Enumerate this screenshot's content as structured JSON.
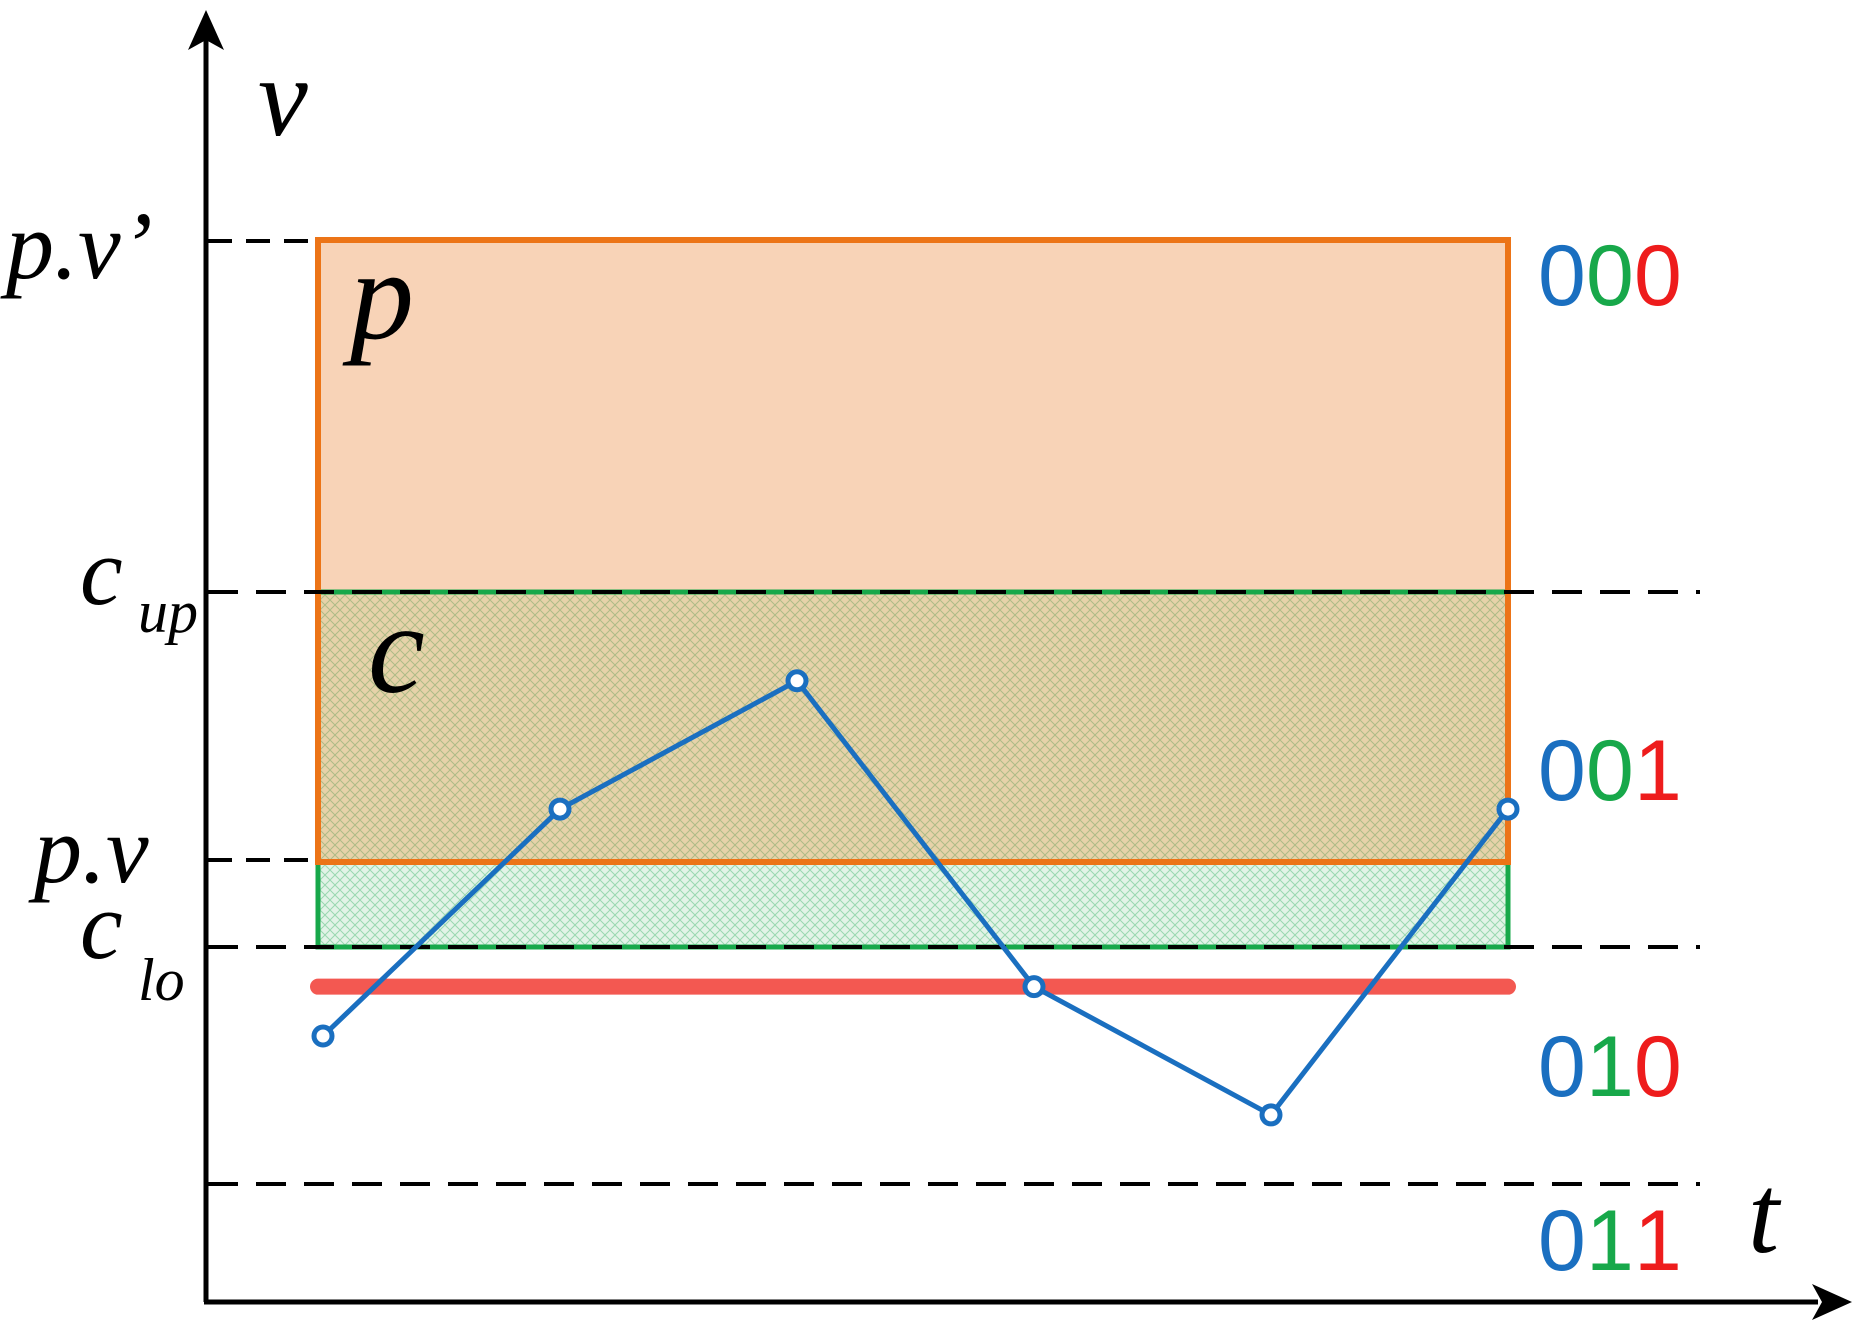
{
  "axes": {
    "y_label": "v",
    "x_label": "t"
  },
  "level_labels": {
    "p_v_prime": "p.v’",
    "c_up_main": "c",
    "c_up_sub": "up",
    "p_v": "p.v",
    "c_lo_main": "c",
    "c_lo_sub": "lo"
  },
  "region_labels": {
    "p": "p",
    "c": "c"
  },
  "codes": [
    {
      "digits": [
        "0",
        "0",
        "0"
      ]
    },
    {
      "digits": [
        "0",
        "0",
        "1"
      ]
    },
    {
      "digits": [
        "0",
        "1",
        "0"
      ]
    },
    {
      "digits": [
        "0",
        "1",
        "1"
      ]
    }
  ],
  "colors": {
    "axis": "#000000",
    "p_region_fill": "#f8d3b7",
    "p_region_stroke": "#ec7417",
    "c_region_stroke": "#17a84a",
    "c_region_hatch": "#7ea86a",
    "series_line": "#1a6fc0",
    "threshold_line": "#f23c33",
    "digit_1": "#1a6fc0",
    "digit_2": "#17a84a",
    "digit_3": "#ee1c1c"
  },
  "chart_data": {
    "type": "line",
    "series": [
      {
        "values": [
          0.75,
          1.9,
          2.55,
          1.0,
          0.35,
          1.9
        ]
      }
    ],
    "x": [
      0,
      1,
      2,
      3,
      4,
      5
    ],
    "threshold": 1.0
  }
}
